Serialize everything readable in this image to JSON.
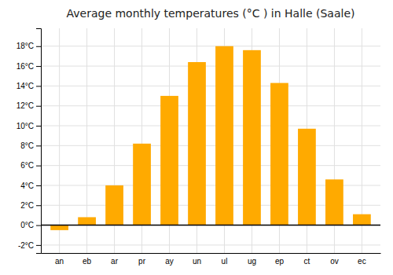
{
  "chart_data": {
    "type": "bar",
    "title": "Average monthly temperatures (°C ) in Halle (Saale)",
    "categories": [
      "an",
      "eb",
      "ar",
      "pr",
      "ay",
      "un",
      "ul",
      "ug",
      "ep",
      "ct",
      "ov",
      "ec"
    ],
    "values": [
      -0.5,
      0.8,
      4.0,
      8.2,
      13.0,
      16.4,
      18.0,
      17.6,
      14.3,
      9.7,
      4.6,
      1.1
    ],
    "color": "#FFAA00",
    "ylim": [
      -2.8,
      19.8
    ],
    "yticks": [
      {
        "value": -2,
        "label": "-2°C"
      },
      {
        "value": 0,
        "label": "0°C"
      },
      {
        "value": 2,
        "label": "2°C"
      },
      {
        "value": 4,
        "label": "4°C"
      },
      {
        "value": 6,
        "label": "6°C"
      },
      {
        "value": 8,
        "label": "8°C"
      },
      {
        "value": 10,
        "label": "10°C"
      },
      {
        "value": 12,
        "label": "12°C"
      },
      {
        "value": 14,
        "label": "14°C"
      },
      {
        "value": 16,
        "label": "16°C"
      },
      {
        "value": 18,
        "label": "18°C"
      }
    ],
    "grid": true
  }
}
